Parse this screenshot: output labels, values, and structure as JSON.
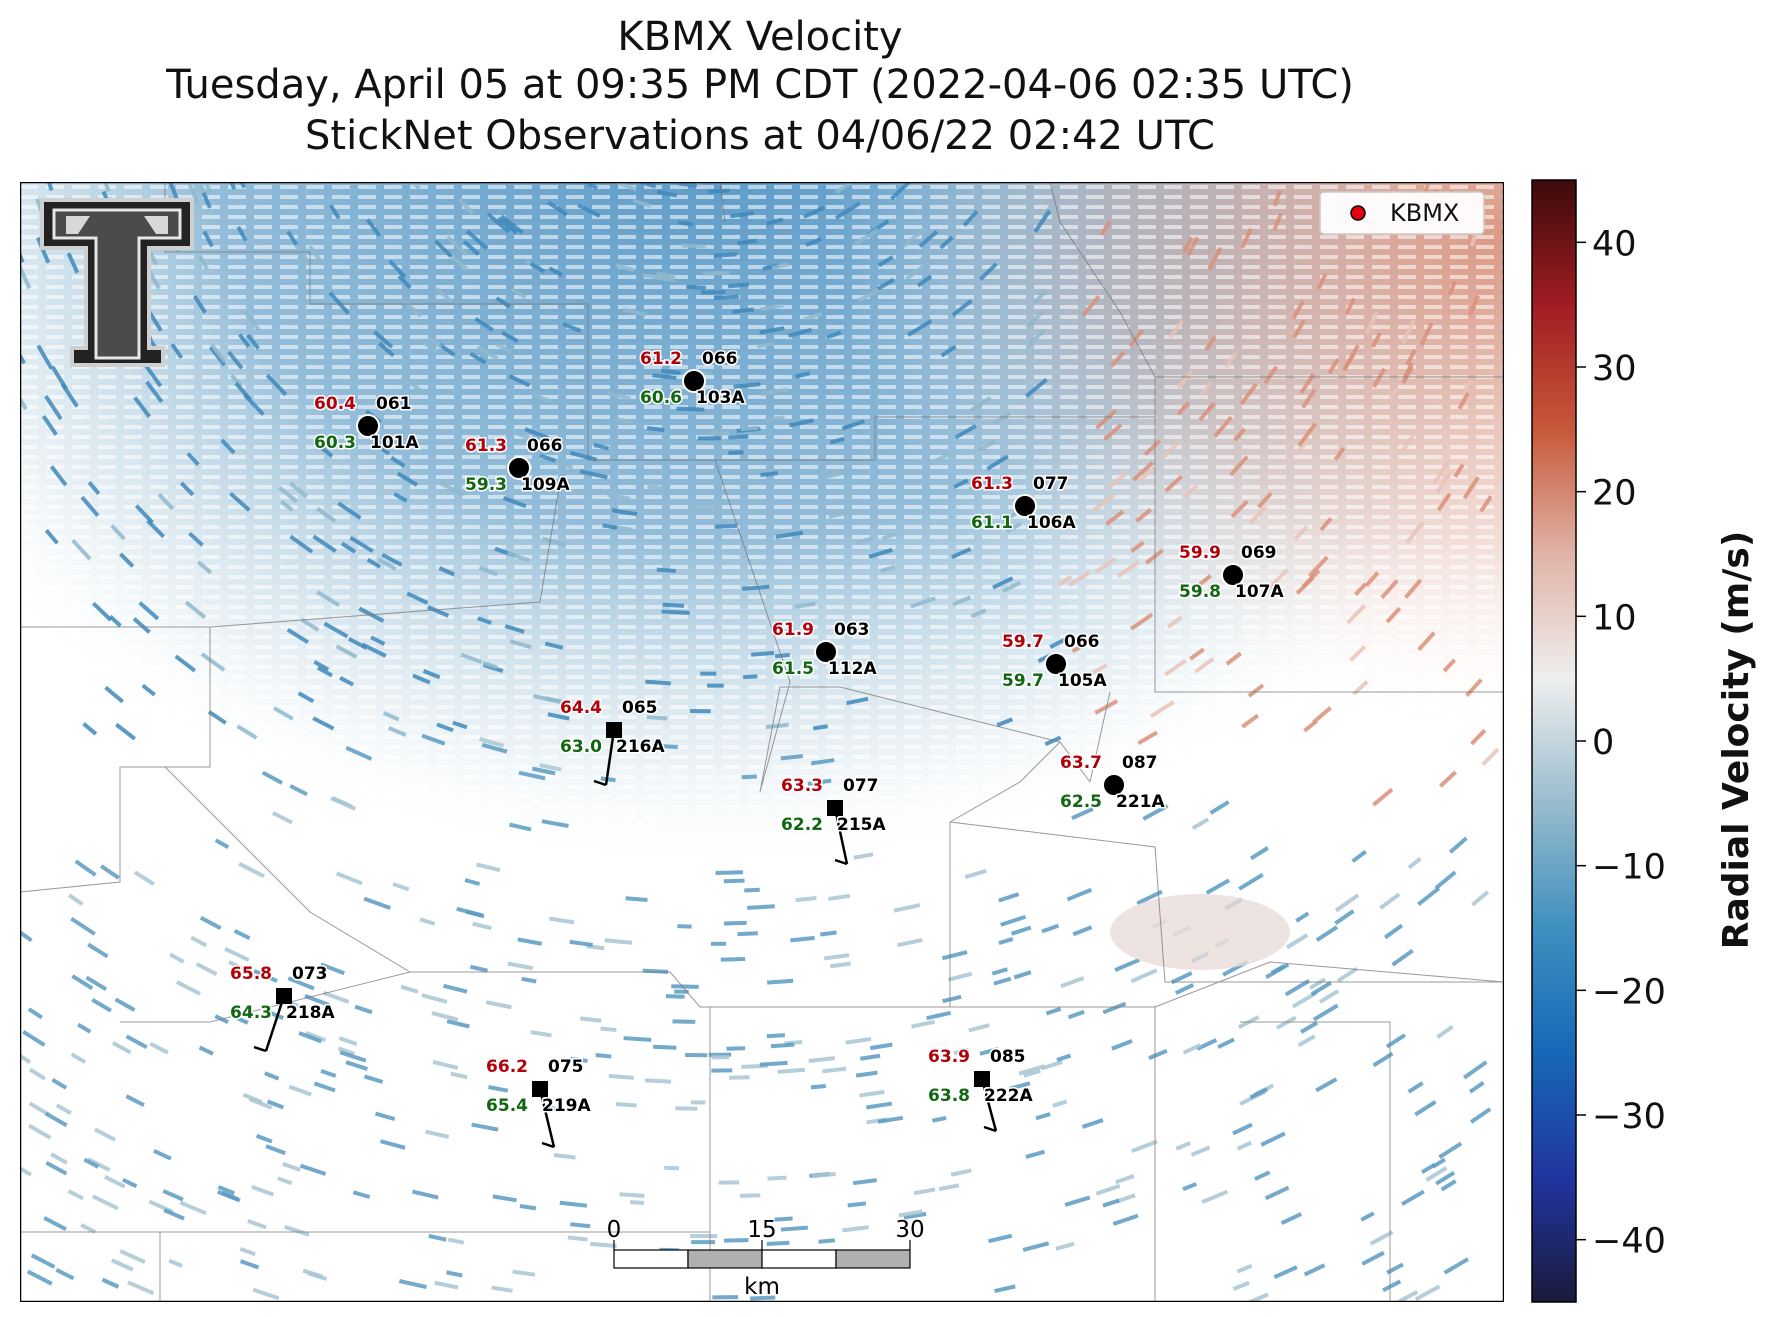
{
  "title": {
    "line1": "KBMX Velocity",
    "line2": "Tuesday, April 05 at 09:35 PM CDT (2022-04-06 02:35 UTC)",
    "line3": "StickNet Observations at 04/06/22 02:42 UTC"
  },
  "legend": {
    "label": "KBMX",
    "marker_color": "#e8000b"
  },
  "colorbar": {
    "label": "Radial Velocity (m/s)",
    "ticks": [
      "40",
      "30",
      "20",
      "10",
      "0",
      "−10",
      "−20",
      "−30",
      "−40"
    ],
    "tick_values": [
      40,
      30,
      20,
      10,
      0,
      -10,
      -20,
      -30,
      -40
    ],
    "range": [
      -45,
      45
    ],
    "colors": [
      "#1a1a3a",
      "#2135a0",
      "#1668b8",
      "#3f8fbf",
      "#98bccd",
      "#efefef",
      "#e0b3a6",
      "#c8583a",
      "#a01c22",
      "#3c0a0a"
    ]
  },
  "scale_bar": {
    "ticks": [
      "0",
      "15",
      "30"
    ],
    "unit": "km"
  },
  "colors": {
    "temperature": "#b0000a",
    "dewpoint": "#116611",
    "station_id": "#000000"
  },
  "stations": [
    {
      "id": "101A",
      "temp": "60.4",
      "dew": "60.3",
      "dir": "061",
      "type": "circle"
    },
    {
      "id": "109A",
      "temp": "61.3",
      "dew": "59.3",
      "dir": "066",
      "type": "circle"
    },
    {
      "id": "103A",
      "temp": "61.2",
      "dew": "60.6",
      "dir": "066",
      "type": "circle"
    },
    {
      "id": "106A",
      "temp": "61.3",
      "dew": "61.1",
      "dir": "077",
      "type": "circle"
    },
    {
      "id": "107A",
      "temp": "59.9",
      "dew": "59.8",
      "dir": "069",
      "type": "circle"
    },
    {
      "id": "112A",
      "temp": "61.9",
      "dew": "61.5",
      "dir": "063",
      "type": "circle"
    },
    {
      "id": "105A",
      "temp": "59.7",
      "dew": "59.7",
      "dir": "066",
      "type": "circle"
    },
    {
      "id": "216A",
      "temp": "64.4",
      "dew": "63.0",
      "dir": "065",
      "type": "square"
    },
    {
      "id": "215A",
      "temp": "63.3",
      "dew": "62.2",
      "dir": "077",
      "type": "square"
    },
    {
      "id": "221A",
      "temp": "63.7",
      "dew": "62.5",
      "dir": "087",
      "type": "circle"
    },
    {
      "id": "218A",
      "temp": "65.8",
      "dew": "64.3",
      "dir": "073",
      "type": "square"
    },
    {
      "id": "219A",
      "temp": "66.2",
      "dew": "65.4",
      "dir": "075",
      "type": "square"
    },
    {
      "id": "222A",
      "temp": "63.9",
      "dew": "63.8",
      "dir": "085",
      "type": "square"
    }
  ]
}
